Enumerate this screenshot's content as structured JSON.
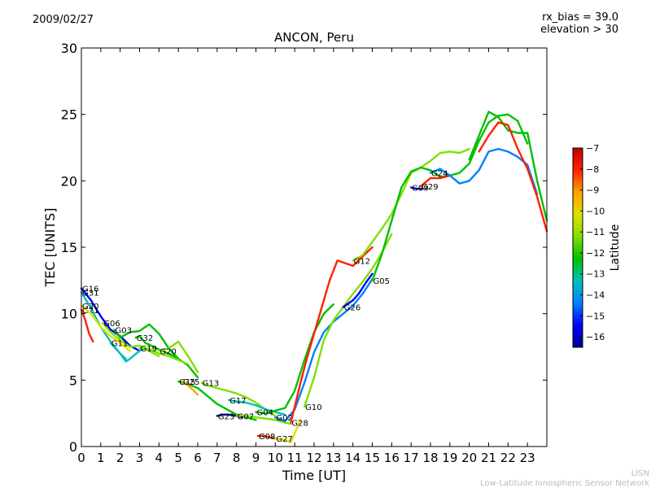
{
  "header": {
    "date": "2009/02/27",
    "rx_bias": "rx_bias = 39.0",
    "elevation": "elevation > 30"
  },
  "footer": {
    "line1": "LISN",
    "line2": "Low-Latitude Ionospheric Sensor Network"
  },
  "chart_data": {
    "type": "scatter",
    "title": "ANCON, Peru",
    "xlabel": "Time [UT]",
    "ylabel": "TEC [UNITS]",
    "xlim": [
      0,
      24
    ],
    "ylim": [
      0,
      30
    ],
    "xticks": [
      0,
      1,
      2,
      3,
      4,
      5,
      6,
      7,
      8,
      9,
      10,
      11,
      12,
      13,
      14,
      15,
      16,
      17,
      18,
      19,
      20,
      21,
      22,
      23
    ],
    "yticks": [
      0,
      5,
      10,
      15,
      20,
      25,
      30
    ],
    "grid": false,
    "colorbar": {
      "label": "Latitude",
      "range": [
        -16.5,
        -7
      ],
      "ticks": [
        -7,
        -8,
        -9,
        -10,
        -11,
        -12,
        -13,
        -14,
        -15,
        -16
      ],
      "colormap": [
        "#00008f",
        "#0000ff",
        "#0080ff",
        "#00c0c0",
        "#00c000",
        "#80e000",
        "#e0e000",
        "#ffa000",
        "#ff2000",
        "#c00000"
      ]
    },
    "series": [
      {
        "name": "G16",
        "lat": -15.5,
        "x": [
          0.0,
          0.5,
          1.0,
          1.5,
          2.0,
          2.5,
          3.0
        ],
        "y": [
          11.9,
          11.0,
          9.8,
          8.8,
          8.3,
          7.6,
          7.2
        ]
      },
      {
        "name": "G31",
        "lat": -13.8,
        "x": [
          0.0,
          0.5,
          1.0,
          1.5,
          2.0,
          2.3
        ],
        "y": [
          11.6,
          10.4,
          9.0,
          7.9,
          7.0,
          6.6
        ]
      },
      {
        "name": "G21",
        "lat": -8.5,
        "x": [
          0.0,
          0.2,
          0.4,
          0.6
        ],
        "y": [
          10.3,
          9.5,
          8.5,
          7.9
        ]
      },
      {
        "name": "G30",
        "lat": -10.0,
        "x": [
          0.0,
          0.5,
          1.0,
          1.5,
          2.0,
          2.5
        ],
        "y": [
          10.6,
          10.0,
          9.0,
          8.3,
          7.8,
          7.2
        ]
      },
      {
        "name": "G06",
        "lat": -11.5,
        "x": [
          1.1,
          1.5,
          2.0,
          2.5,
          3.0,
          3.5,
          4.0
        ],
        "y": [
          9.3,
          8.6,
          8.0,
          7.5,
          7.6,
          7.2,
          6.8
        ]
      },
      {
        "name": "G03",
        "lat": -12.0,
        "x": [
          1.7,
          2.0,
          2.5,
          3.0,
          3.5,
          4.0,
          4.5,
          5.0,
          5.5,
          6.0
        ],
        "y": [
          8.8,
          8.2,
          8.6,
          8.7,
          9.2,
          8.5,
          7.4,
          6.6,
          6.1,
          5.2
        ]
      },
      {
        "name": "G11",
        "lat": -13.5,
        "x": [
          1.5,
          2.0,
          2.3,
          2.5,
          3.0,
          3.3
        ],
        "y": [
          7.8,
          7.0,
          6.4,
          6.6,
          7.2,
          7.4
        ]
      },
      {
        "name": "G32",
        "lat": -12.0,
        "x": [
          2.8,
          3.0,
          3.3,
          3.6,
          4.0,
          4.5,
          5.0
        ],
        "y": [
          8.2,
          8.3,
          7.8,
          7.6,
          7.3,
          7.0,
          6.6
        ]
      },
      {
        "name": "G19",
        "lat": -11.5,
        "x": [
          3.0,
          3.3,
          3.6,
          4.0,
          4.5,
          5.0,
          5.5
        ],
        "y": [
          7.4,
          7.4,
          7.3,
          7.0,
          6.8,
          6.5,
          6.2
        ]
      },
      {
        "name": "G20",
        "lat": -11.2,
        "x": [
          4.0,
          4.5,
          5.0,
          5.5,
          6.0
        ],
        "y": [
          7.2,
          7.4,
          7.9,
          6.8,
          5.6
        ]
      },
      {
        "name": "G15",
        "lat": -12.0,
        "x": [
          5.0,
          5.5,
          6.0,
          6.5,
          7.0,
          7.5,
          8.0,
          8.5,
          9.0
        ],
        "y": [
          4.9,
          4.7,
          4.4,
          3.8,
          3.2,
          2.8,
          2.4,
          2.2,
          2.0
        ]
      },
      {
        "name": "G25",
        "lat": -9.0,
        "x": [
          5.2,
          5.5,
          5.8,
          6.0
        ],
        "y": [
          4.9,
          4.6,
          4.2,
          3.9
        ]
      },
      {
        "name": "G13",
        "lat": -11.5,
        "x": [
          6.2,
          6.5,
          7.0,
          7.5,
          8.0,
          8.5,
          9.0,
          9.5,
          10.0
        ],
        "y": [
          4.8,
          4.6,
          4.4,
          4.2,
          4.0,
          3.7,
          3.3,
          2.8,
          2.3
        ]
      },
      {
        "name": "G17",
        "lat": -13.5,
        "x": [
          7.6,
          8.0,
          8.5,
          9.0,
          9.5,
          10.0,
          10.5
        ],
        "y": [
          3.5,
          3.4,
          3.3,
          3.1,
          2.8,
          2.6,
          2.4
        ]
      },
      {
        "name": "G23",
        "lat": -16.0,
        "x": [
          7.0,
          7.3,
          7.6,
          8.0,
          8.3
        ],
        "y": [
          2.3,
          2.4,
          2.4,
          2.3,
          2.2
        ]
      },
      {
        "name": "G07",
        "lat": -11.0,
        "x": [
          8.0,
          8.5,
          9.0,
          9.5,
          10.0,
          10.5,
          10.8
        ],
        "y": [
          2.3,
          2.3,
          2.2,
          2.1,
          2.0,
          1.8,
          1.7
        ]
      },
      {
        "name": "G04",
        "lat": -12.5,
        "x": [
          9.0,
          9.5,
          10.0,
          10.5,
          11.0,
          11.5,
          12.0,
          12.5,
          13.0
        ],
        "y": [
          2.6,
          2.5,
          2.7,
          2.9,
          4.2,
          6.5,
          8.6,
          10.0,
          10.7
        ]
      },
      {
        "name": "G08",
        "lat": -8.0,
        "x": [
          9.1,
          9.4,
          9.7,
          10.0
        ],
        "y": [
          0.8,
          0.8,
          0.7,
          0.6
        ]
      },
      {
        "name": "G02",
        "lat": -14.5,
        "x": [
          10.0,
          10.5,
          11.0,
          11.5,
          12.0,
          12.5,
          13.0,
          13.5,
          14.0,
          14.5,
          15.0
        ],
        "y": [
          2.2,
          1.9,
          2.8,
          4.8,
          7.1,
          8.6,
          9.4,
          10.0,
          10.6,
          11.5,
          12.6
        ]
      },
      {
        "name": "G27",
        "lat": -10.5,
        "x": [
          10.0,
          10.5,
          10.8,
          11.0,
          11.3
        ],
        "y": [
          0.6,
          0.5,
          0.3,
          1.0,
          2.0
        ]
      },
      {
        "name": "G28",
        "lat": -8.5,
        "x": [
          10.8,
          11.0,
          11.3,
          11.6,
          12.0,
          12.4,
          12.8,
          13.2,
          14.0,
          15.0
        ],
        "y": [
          1.8,
          3.0,
          4.8,
          6.5,
          8.5,
          10.5,
          12.5,
          14.0,
          13.6,
          15.0
        ]
      },
      {
        "name": "G10",
        "lat": -11.5,
        "x": [
          11.5,
          12.0,
          12.5,
          13.0,
          13.5,
          14.0,
          14.5,
          15.0,
          15.5,
          16.0
        ],
        "y": [
          3.0,
          5.2,
          8.0,
          9.5,
          10.5,
          11.5,
          12.4,
          13.4,
          14.6,
          16.0
        ]
      },
      {
        "name": "G26",
        "lat": -15.0,
        "x": [
          13.5,
          14.0,
          14.3,
          14.7,
          15.0
        ],
        "y": [
          10.5,
          11.0,
          11.5,
          12.4,
          13.0
        ]
      },
      {
        "name": "G12",
        "lat": -11.0,
        "x": [
          14.0,
          14.5,
          15.0,
          15.5,
          16.0,
          16.5,
          17.0,
          17.5,
          18.0,
          18.5,
          19.0,
          19.5,
          20.0
        ],
        "y": [
          14.0,
          14.4,
          15.4,
          16.4,
          17.5,
          19.0,
          20.6,
          21.0,
          21.5,
          22.1,
          22.2,
          22.1,
          22.4
        ]
      },
      {
        "name": "G05",
        "lat": -12.5,
        "x": [
          15.0,
          15.5,
          16.0,
          16.5,
          17.0,
          17.5,
          18.0,
          18.5,
          19.0,
          19.5,
          20.0,
          20.5,
          21.0,
          21.5,
          22.0,
          22.5,
          23.0
        ],
        "y": [
          12.5,
          14.5,
          17.0,
          19.5,
          20.7,
          21.0,
          20.8,
          20.3,
          20.4,
          20.6,
          21.3,
          23.0,
          24.4,
          24.9,
          25.0,
          24.5,
          22.8
        ]
      },
      {
        "name": "G09",
        "lat": -15.5,
        "x": [
          17.0,
          17.3,
          17.6
        ],
        "y": [
          19.5,
          19.4,
          19.4
        ]
      },
      {
        "name": "G29",
        "lat": -8.0,
        "x": [
          17.5,
          18.0,
          18.5,
          19.0
        ],
        "y": [
          19.6,
          20.2,
          20.2,
          20.4
        ]
      },
      {
        "name": "G24",
        "lat": -14.5,
        "x": [
          18.0,
          18.5,
          19.0,
          19.5,
          20.0,
          20.5,
          21.0,
          21.5,
          22.0,
          22.5,
          23.0,
          23.5
        ],
        "y": [
          20.6,
          20.9,
          20.4,
          19.8,
          20.0,
          20.8,
          22.2,
          22.4,
          22.2,
          21.8,
          21.2,
          19.0
        ]
      },
      {
        "name": "",
        "lat": -12.0,
        "x": [
          20.0,
          20.5,
          21.0,
          21.5,
          22.0,
          22.5,
          23.0,
          23.5,
          24.0
        ],
        "y": [
          21.6,
          23.4,
          25.2,
          24.8,
          23.8,
          23.6,
          23.6,
          20.0,
          17.0
        ]
      },
      {
        "name": "",
        "lat": -8.5,
        "x": [
          20.5,
          21.0,
          21.5,
          22.0,
          22.5,
          23.0,
          23.5,
          24.0
        ],
        "y": [
          22.2,
          23.4,
          24.4,
          24.2,
          22.4,
          20.9,
          18.8,
          16.2
        ]
      }
    ]
  }
}
